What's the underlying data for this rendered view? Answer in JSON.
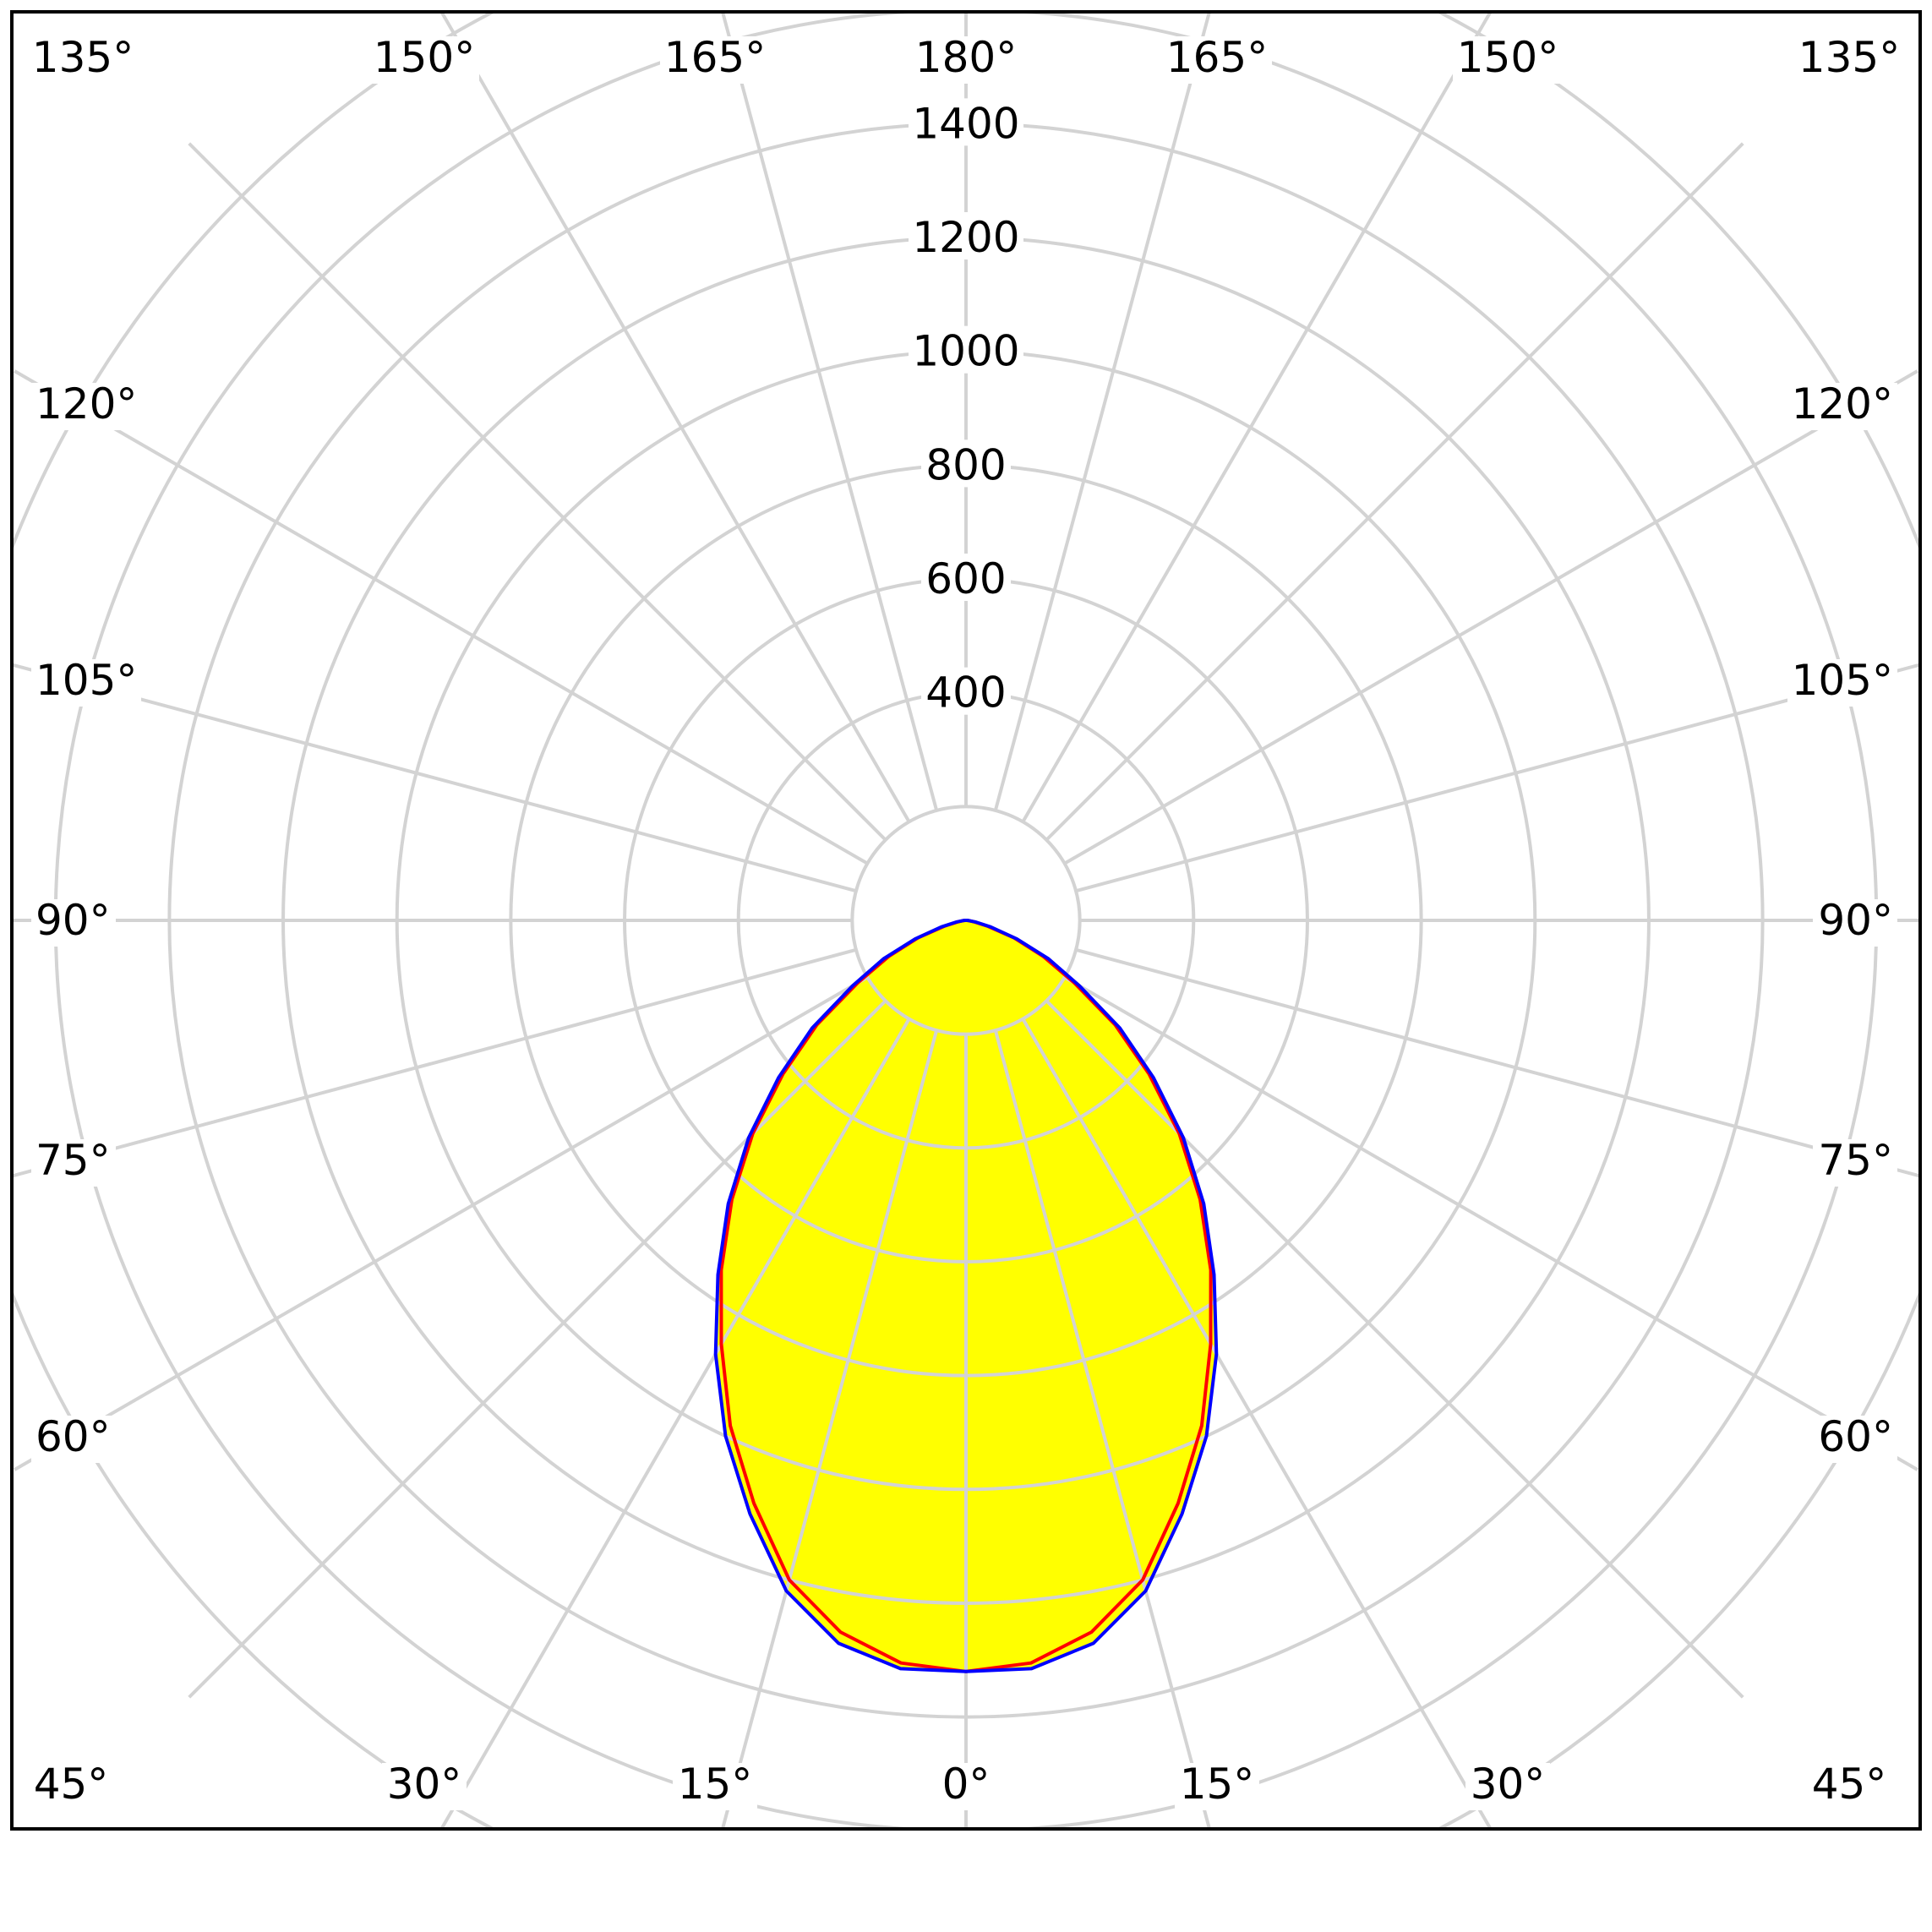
{
  "chart_data": {
    "type": "polar",
    "title": "",
    "units": "",
    "radial_ticks": [
      200,
      400,
      600,
      800,
      1000,
      1200,
      1400,
      1600,
      1800
    ],
    "radial_tick_labels": [
      "400",
      "600",
      "800",
      "1000",
      "1200",
      "1400"
    ],
    "radial_max": 1800,
    "angle_step_deg": 15,
    "angle_labels": {
      "top": [
        "135°",
        "150°",
        "165°",
        "180°",
        "165°",
        "150°",
        "135°"
      ],
      "left": [
        "120°",
        "105°",
        "90°",
        "75°",
        "60°"
      ],
      "right": [
        "120°",
        "105°",
        "90°",
        "75°",
        "60°"
      ],
      "bottom": [
        "45°",
        "30°",
        "15°",
        "0°",
        "15°",
        "30°",
        "45°"
      ]
    },
    "grid": true,
    "fill_color": "#ffff00",
    "series": [
      {
        "color": "#ff0000",
        "angles_deg": [
          0,
          5,
          10,
          15,
          20,
          25,
          30,
          35,
          40,
          45,
          50,
          55,
          60,
          65,
          70,
          75,
          80,
          85,
          90
        ],
        "values": [
          1320,
          1310,
          1270,
          1200,
          1090,
          980,
          860,
          750,
          640,
          530,
          420,
          320,
          220,
          150,
          90,
          40,
          15,
          5,
          2
        ]
      },
      {
        "color": "#0000ff",
        "angles_deg": [
          0,
          5,
          10,
          15,
          20,
          25,
          30,
          35,
          40,
          45,
          50,
          55,
          60,
          65,
          70,
          75,
          80,
          85,
          90
        ],
        "values": [
          1320,
          1320,
          1290,
          1220,
          1110,
          1000,
          880,
          760,
          650,
          540,
          430,
          330,
          230,
          160,
          95,
          45,
          18,
          6,
          2
        ]
      }
    ]
  }
}
